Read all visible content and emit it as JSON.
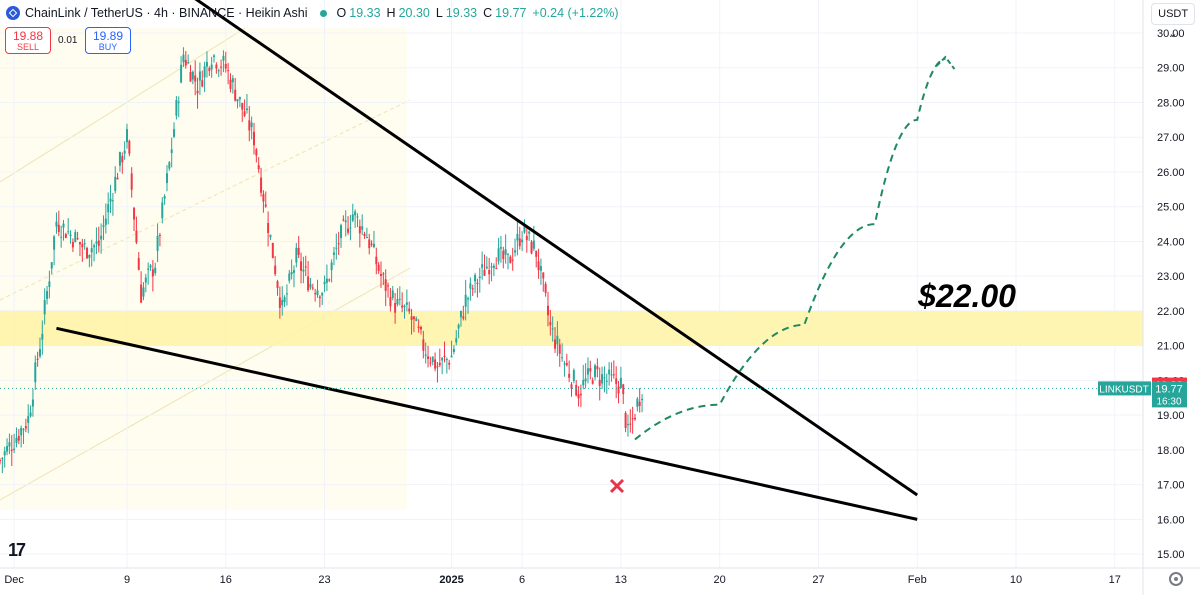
{
  "header": {
    "symbol": "ChainLink / TetherUS · 4h · BINANCE · Heikin Ashi",
    "o_label": "O",
    "o_value": "19.33",
    "h_label": "H",
    "h_value": "20.30",
    "l_label": "L",
    "l_value": "19.33",
    "c_label": "C",
    "c_value": "19.77",
    "change": "+0.24 (+1.22%)"
  },
  "trade": {
    "sell_price": "19.88",
    "sell_label": "SELL",
    "spread": "0.01",
    "buy_price": "19.89",
    "buy_label": "BUY"
  },
  "currency": "USDT",
  "colors": {
    "up": "#26a69a",
    "down": "#f23645",
    "zone": "#fff3a6",
    "projection": "#1e8a5e",
    "grid": "#f0f3fa"
  },
  "chart_data": {
    "type": "candlestick",
    "style": "Heikin Ashi",
    "interval": "4h",
    "y_ticks": [
      15,
      16,
      17,
      18,
      19,
      20,
      21,
      22,
      23,
      24,
      25,
      26,
      27,
      28,
      29,
      30
    ],
    "y_tick_labels": [
      "15.00",
      "16.00",
      "17.00",
      "18.00",
      "19.00",
      "20.00",
      "21.00",
      "22.00",
      "23.00",
      "24.00",
      "25.00",
      "26.00",
      "27.00",
      "28.00",
      "29.00",
      "30.00"
    ],
    "ylim": [
      14.6,
      30.95
    ],
    "xlim": [
      "2024-11-30",
      "2025-02-19"
    ],
    "x_ticks": [
      "2024-12-01",
      "2024-12-09",
      "2024-12-16",
      "2024-12-23",
      "2025-01-01",
      "2025-01-06",
      "2025-01-13",
      "2025-01-20",
      "2025-01-27",
      "2025-02-03",
      "2025-02-10",
      "2025-02-17"
    ],
    "x_tick_labels": [
      "Dec",
      "9",
      "16",
      "23",
      "2025",
      "6",
      "13",
      "20",
      "27",
      "Feb",
      "10",
      "17"
    ],
    "price_path": [
      [
        "2024-11-30",
        17.7
      ],
      [
        "2024-12-02",
        18.9
      ],
      [
        "2024-12-03",
        21.5
      ],
      [
        "2024-12-04",
        24.6
      ],
      [
        "2024-12-05",
        24.2
      ],
      [
        "2024-12-06",
        23.8
      ],
      [
        "2024-12-07",
        23.9
      ],
      [
        "2024-12-08",
        25.5
      ],
      [
        "2024-12-09",
        27.0
      ],
      [
        "2024-12-10",
        22.5
      ],
      [
        "2024-12-11",
        23.4
      ],
      [
        "2024-12-12",
        26.2
      ],
      [
        "2024-12-13",
        29.4
      ],
      [
        "2024-12-14",
        28.5
      ],
      [
        "2024-12-15",
        29.4
      ],
      [
        "2024-12-16",
        29.0
      ],
      [
        "2024-12-17",
        28.0
      ],
      [
        "2024-12-18",
        27.0
      ],
      [
        "2024-12-19",
        24.5
      ],
      [
        "2024-12-20",
        22.0
      ],
      [
        "2024-12-21",
        23.5
      ],
      [
        "2024-12-22",
        22.8
      ],
      [
        "2024-12-23",
        22.6
      ],
      [
        "2024-12-24",
        24.0
      ],
      [
        "2024-12-25",
        24.8
      ],
      [
        "2024-12-26",
        24.2
      ],
      [
        "2024-12-27",
        23.0
      ],
      [
        "2024-12-28",
        22.2
      ],
      [
        "2024-12-29",
        21.9
      ],
      [
        "2024-12-30",
        21.0
      ],
      [
        "2024-12-31",
        20.4
      ],
      [
        "2025-01-01",
        20.7
      ],
      [
        "2025-01-02",
        22.3
      ],
      [
        "2025-01-03",
        23.0
      ],
      [
        "2025-01-04",
        23.6
      ],
      [
        "2025-01-05",
        23.4
      ],
      [
        "2025-01-06",
        24.3
      ],
      [
        "2025-01-07",
        23.7
      ],
      [
        "2025-01-08",
        21.5
      ],
      [
        "2025-01-09",
        20.5
      ],
      [
        "2025-01-10",
        19.7
      ],
      [
        "2025-01-11",
        20.2
      ],
      [
        "2025-01-12",
        20.0
      ],
      [
        "2025-01-13",
        19.9
      ],
      [
        "2025-01-13T12",
        18.4
      ],
      [
        "2025-01-14",
        19.1
      ],
      [
        "2025-01-14T12",
        19.8
      ]
    ],
    "last_price": {
      "symbol": "LINKUSDT",
      "ask": "19.88",
      "last": "19.77",
      "countdown": "16:30"
    },
    "support_zone": {
      "y_min": 21.0,
      "y_max": 22.0
    },
    "trend_upper": [
      [
        "2024-12-12",
        31.5
      ],
      [
        "2025-02-03",
        16.7
      ]
    ],
    "trend_lower": [
      [
        "2024-12-04",
        21.5
      ],
      [
        "2025-02-03",
        16.0
      ]
    ],
    "projection": [
      [
        "2025-01-14",
        18.3
      ],
      [
        "2025-01-20",
        19.3
      ],
      [
        "2025-01-26",
        21.6
      ],
      [
        "2025-01-31",
        24.5
      ],
      [
        "2025-02-03",
        27.5
      ],
      [
        "2025-02-05",
        29.25
      ]
    ],
    "annotations": {
      "target_label": "$22.00",
      "marker": "x-mark"
    }
  }
}
